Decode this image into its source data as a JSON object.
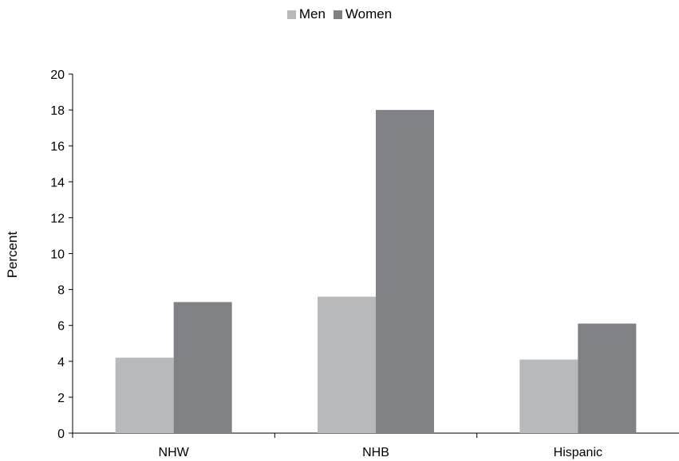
{
  "chart_data": {
    "type": "bar",
    "title": "",
    "xlabel": "",
    "ylabel": "Percent",
    "ylim": [
      0,
      20
    ],
    "yticks": [
      0,
      2,
      4,
      6,
      8,
      10,
      12,
      14,
      16,
      18,
      20
    ],
    "categories": [
      "NHW",
      "NHB",
      "Hispanic"
    ],
    "series": [
      {
        "name": "Men",
        "color": "#b8b9bb",
        "values": [
          4.2,
          7.6,
          4.1
        ]
      },
      {
        "name": "Women",
        "color": "#808184",
        "values": [
          7.3,
          18.0,
          6.1
        ]
      }
    ],
    "legend": "top-center",
    "grid": false
  }
}
